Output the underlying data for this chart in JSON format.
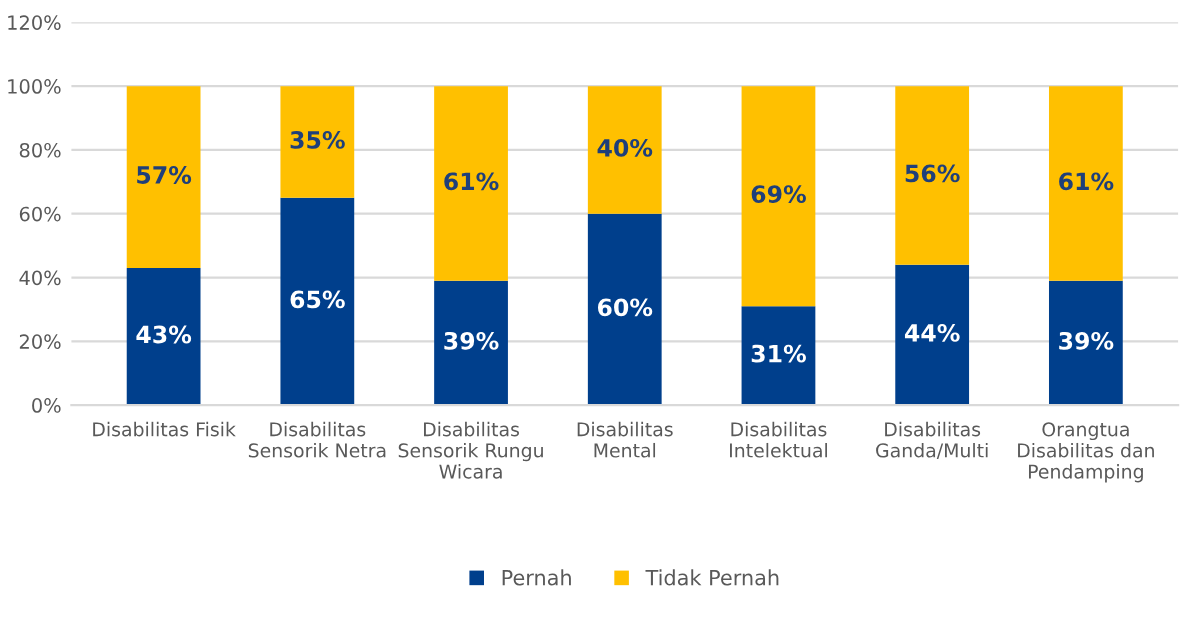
{
  "chart_data": {
    "type": "bar",
    "stacked": true,
    "categories": [
      "Disabilitas Fisik",
      "Disabilitas\nSensorik Netra",
      "Disabilitas\nSensorik Rungu\nWicara",
      "Disabilitas\nMental",
      "Disabilitas\nIntelektual",
      "Disabilitas\nGanda/Multi",
      "Orangtua\nDisabilitas dan\nPendamping"
    ],
    "series": [
      {
        "name": "Pernah",
        "color": "#003f8c",
        "values": [
          43,
          65,
          39,
          60,
          31,
          44,
          39
        ],
        "value_labels": [
          "43%",
          "65%",
          "39%",
          "60%",
          "31%",
          "44%",
          "39%"
        ]
      },
      {
        "name": "Tidak Pernah",
        "color": "#ffc000",
        "values": [
          57,
          35,
          61,
          40,
          69,
          56,
          61
        ],
        "value_labels": [
          "57%",
          "35%",
          "61%",
          "40%",
          "69%",
          "56%",
          "61%"
        ]
      }
    ],
    "ylim": [
      0,
      120
    ],
    "yticks": [
      {
        "value": 0,
        "label": "0%"
      },
      {
        "value": 20,
        "label": "20%"
      },
      {
        "value": 40,
        "label": "40%"
      },
      {
        "value": 60,
        "label": "60%"
      },
      {
        "value": 80,
        "label": "80%"
      },
      {
        "value": 100,
        "label": "100%"
      },
      {
        "value": 120,
        "label": "120%"
      }
    ],
    "grid": "y",
    "legend": "bottom"
  }
}
